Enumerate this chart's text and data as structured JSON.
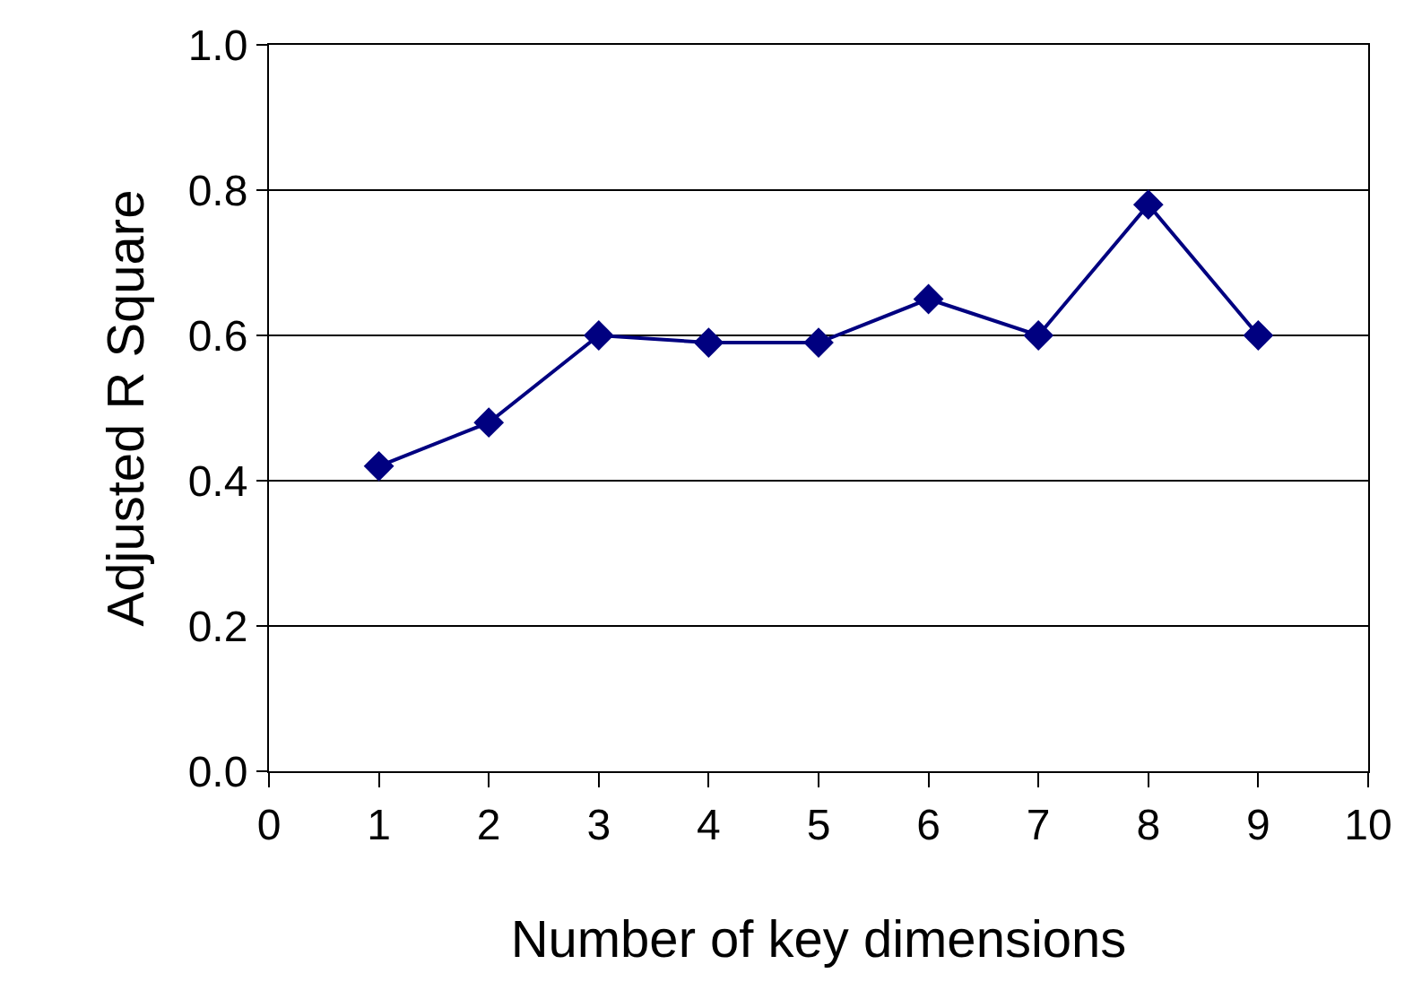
{
  "chart_data": {
    "type": "line",
    "xlabel": "Number of key dimensions",
    "ylabel": "Adjusted R Square",
    "x": [
      1,
      2,
      3,
      4,
      5,
      6,
      7,
      8,
      9
    ],
    "series": [
      {
        "color": "#000080",
        "values": [
          0.42,
          0.48,
          0.6,
          0.59,
          0.59,
          0.65,
          0.6,
          0.78,
          0.6
        ]
      }
    ],
    "xlim": [
      0,
      10
    ],
    "xticks": [
      0,
      1,
      2,
      3,
      4,
      5,
      6,
      7,
      8,
      9,
      10
    ],
    "ylim": [
      0,
      1
    ],
    "yticks": [
      {
        "value": 0,
        "label": "0.0"
      },
      {
        "value": 0.2,
        "label": "0.2"
      },
      {
        "value": 0.4,
        "label": "0.4"
      },
      {
        "value": 0.6,
        "label": "0.6"
      },
      {
        "value": 0.8,
        "label": "0.8"
      },
      {
        "value": 1,
        "label": "1.0"
      }
    ],
    "grid": "y",
    "marker": "diamond",
    "line_style": "solid"
  }
}
